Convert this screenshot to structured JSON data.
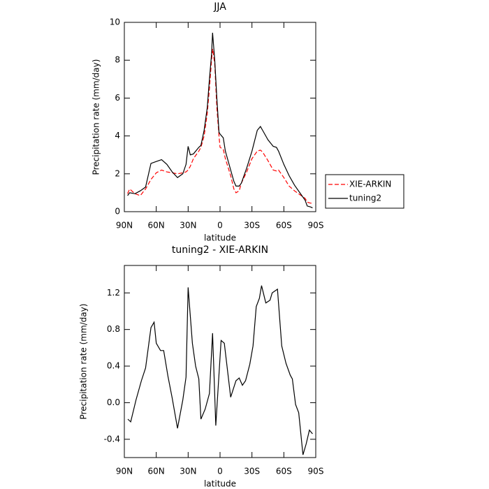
{
  "chart_data": [
    {
      "type": "line",
      "title": "JJA",
      "xlabel": "latitude",
      "ylabel": "Precipitation rate (mm/day)",
      "x": [
        87,
        85,
        80,
        75,
        70,
        65,
        60,
        55,
        50,
        45,
        40,
        35,
        32,
        30,
        28,
        25,
        20,
        18,
        15,
        12,
        10,
        8,
        7,
        5,
        3,
        1,
        0,
        -3,
        -5,
        -10,
        -13,
        -15,
        -18,
        -20,
        -25,
        -30,
        -35,
        -38,
        -40,
        -45,
        -50,
        -53,
        -55,
        -60,
        -65,
        -70,
        -75,
        -80,
        -82,
        -85,
        -87
      ],
      "series": [
        {
          "name": "XIE-ARKIN",
          "color": "#ff0000",
          "dash": "dashed",
          "values": [
            0.95,
            1.2,
            0.95,
            0.85,
            1.2,
            1.7,
            2.05,
            2.2,
            2.1,
            2.05,
            2.0,
            2.05,
            2.1,
            2.2,
            2.4,
            2.8,
            3.2,
            3.4,
            4.0,
            5.2,
            6.5,
            8.0,
            8.6,
            7.8,
            5.5,
            4.0,
            3.4,
            3.3,
            2.8,
            1.9,
            1.2,
            1.0,
            1.1,
            1.5,
            2.1,
            2.8,
            3.2,
            3.25,
            3.15,
            2.7,
            2.2,
            2.15,
            2.2,
            1.8,
            1.35,
            1.1,
            0.9,
            0.7,
            0.5,
            0.45,
            0.45
          ]
        },
        {
          "name": "tuning2",
          "color": "#000000",
          "dash": "solid",
          "values": [
            0.85,
            1.0,
            0.95,
            1.1,
            1.3,
            2.55,
            2.65,
            2.75,
            2.5,
            2.1,
            1.8,
            2.0,
            2.5,
            3.45,
            3.0,
            3.05,
            3.4,
            3.5,
            4.3,
            5.5,
            7.0,
            8.3,
            9.45,
            8.0,
            6.0,
            4.2,
            4.1,
            3.9,
            3.2,
            2.2,
            1.6,
            1.35,
            1.35,
            1.5,
            2.3,
            3.2,
            4.3,
            4.5,
            4.3,
            3.8,
            3.45,
            3.4,
            3.2,
            2.5,
            1.9,
            1.4,
            1.0,
            0.6,
            0.3,
            0.25,
            0.2
          ]
        }
      ],
      "xlim": [
        90,
        -90
      ],
      "xticks": [
        {
          "value": 90,
          "label": "90N"
        },
        {
          "value": 60,
          "label": "60N"
        },
        {
          "value": 30,
          "label": "30N"
        },
        0,
        {
          "value": -30,
          "label": "30S"
        },
        {
          "value": -60,
          "label": "60S"
        },
        {
          "value": -90,
          "label": "90S"
        }
      ],
      "ylim": [
        0,
        10
      ],
      "yticks": [
        0,
        2,
        4,
        6,
        8,
        10
      ],
      "legend": "outside right"
    },
    {
      "type": "line",
      "title": "tuning2 - XIE-ARKIN",
      "xlabel": "latitude",
      "ylabel": "Precipitation rate (mm/day)",
      "x": [
        86.7,
        84,
        79,
        74,
        70,
        65,
        62,
        60,
        56,
        53,
        49,
        45,
        40,
        35,
        32,
        30,
        26,
        23,
        20,
        18,
        14,
        10,
        7,
        4,
        -1,
        -4,
        -10,
        -15,
        -18,
        -21,
        -24,
        -28,
        -31,
        -34,
        -37,
        -39,
        -43,
        -47,
        -49,
        -54,
        -58,
        -62,
        -66,
        -68,
        -71,
        -74,
        -78,
        -81,
        -84,
        -87
      ],
      "series": [
        {
          "color": "#000000",
          "dash": "solid",
          "values": [
            -0.18,
            -0.21,
            0.03,
            0.24,
            0.38,
            0.82,
            0.88,
            0.65,
            0.57,
            0.57,
            0.29,
            0.05,
            -0.28,
            0.03,
            0.28,
            1.26,
            0.65,
            0.4,
            0.26,
            -0.18,
            -0.07,
            0.1,
            0.76,
            -0.25,
            0.68,
            0.65,
            0.06,
            0.24,
            0.27,
            0.19,
            0.24,
            0.42,
            0.62,
            1.05,
            1.14,
            1.28,
            1.09,
            1.12,
            1.2,
            1.24,
            0.62,
            0.43,
            0.3,
            0.26,
            -0.02,
            -0.11,
            -0.57,
            -0.45,
            -0.3,
            -0.34
          ]
        }
      ],
      "xlim": [
        90,
        -90
      ],
      "xticks": [
        {
          "value": 90,
          "label": "90N"
        },
        {
          "value": 60,
          "label": "60N"
        },
        {
          "value": 30,
          "label": "30N"
        },
        0,
        {
          "value": -30,
          "label": "30S"
        },
        {
          "value": -60,
          "label": "60S"
        },
        {
          "value": -90,
          "label": "90S"
        }
      ],
      "ylim": [
        -0.6,
        1.5
      ],
      "yticks": [
        -0.4,
        {
          "value": 0,
          "label": "0.0"
        },
        0.4,
        0.8,
        1.2
      ]
    }
  ]
}
